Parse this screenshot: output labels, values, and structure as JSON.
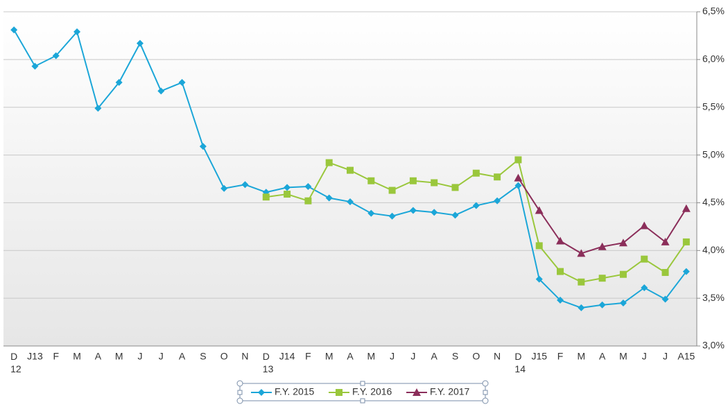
{
  "chart_data": {
    "type": "line",
    "categories": [
      "D 12",
      "J13",
      "F",
      "M",
      "A",
      "M",
      "J",
      "J",
      "A",
      "S",
      "O",
      "N",
      "D 13",
      "J14",
      "F",
      "M",
      "A",
      "M",
      "J",
      "J",
      "A",
      "S",
      "O",
      "N",
      "D 14",
      "J15",
      "F",
      "M",
      "A",
      "M",
      "J",
      "J",
      "A15"
    ],
    "series": [
      {
        "name": "F.Y. 2015",
        "color": "#1ba6d8",
        "marker": "diamond",
        "values": [
          6.31,
          5.93,
          6.04,
          6.29,
          5.49,
          5.76,
          6.17,
          5.67,
          5.76,
          5.09,
          4.65,
          4.69,
          4.61,
          4.66,
          4.67,
          4.55,
          4.51,
          4.39,
          4.36,
          4.42,
          4.4,
          4.37,
          4.47,
          4.52,
          4.68,
          3.7,
          3.48,
          3.4,
          3.43,
          3.45,
          3.61,
          3.49,
          3.78
        ]
      },
      {
        "name": "F.Y. 2016",
        "color": "#9ac73c",
        "marker": "square",
        "values": [
          null,
          null,
          null,
          null,
          null,
          null,
          null,
          null,
          null,
          null,
          null,
          null,
          4.56,
          4.59,
          4.52,
          4.92,
          4.84,
          4.73,
          4.63,
          4.73,
          4.71,
          4.66,
          4.81,
          4.77,
          4.95,
          4.05,
          3.78,
          3.67,
          3.71,
          3.75,
          3.91,
          3.77,
          4.09
        ]
      },
      {
        "name": "F.Y. 2017",
        "color": "#8b2e5a",
        "marker": "triangle",
        "values": [
          null,
          null,
          null,
          null,
          null,
          null,
          null,
          null,
          null,
          null,
          null,
          null,
          null,
          null,
          null,
          null,
          null,
          null,
          null,
          null,
          null,
          null,
          null,
          null,
          4.76,
          4.42,
          4.1,
          3.97,
          4.04,
          4.08,
          4.26,
          4.09,
          4.44
        ]
      }
    ],
    "ylim": [
      3.0,
      6.5
    ],
    "yticks": [
      {
        "value": 3.0,
        "label": "3,0%"
      },
      {
        "value": 3.5,
        "label": "3,5%"
      },
      {
        "value": 4.0,
        "label": "4,0%"
      },
      {
        "value": 4.5,
        "label": "4,5%"
      },
      {
        "value": 5.0,
        "label": "5,0%"
      },
      {
        "value": 5.5,
        "label": "5,5%"
      },
      {
        "value": 6.0,
        "label": "6,0%"
      },
      {
        "value": 6.5,
        "label": "6,5%"
      }
    ],
    "grid": true,
    "legend": "bottom"
  }
}
